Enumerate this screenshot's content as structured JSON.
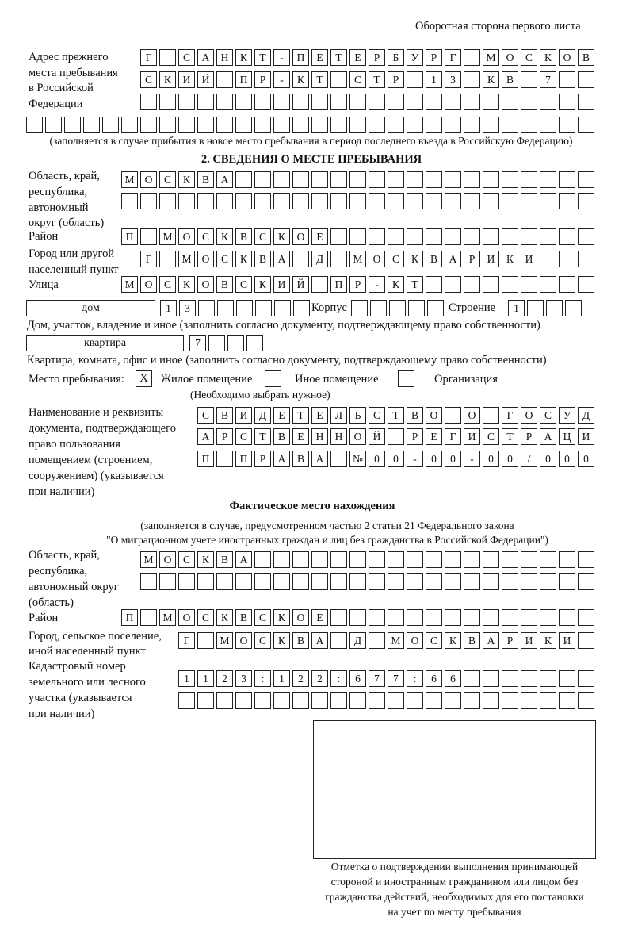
{
  "header": "Оборотная сторона первого листа",
  "prev_address": {
    "label": [
      "Адрес прежнего",
      "места пребывания",
      "в Российской",
      "Федерации"
    ],
    "rows": [
      [
        "Г",
        "",
        "С",
        "А",
        "Н",
        "К",
        "Т",
        "-",
        "П",
        "Е",
        "Т",
        "Е",
        "Р",
        "Б",
        "У",
        "Р",
        "Г",
        "",
        "М",
        "О",
        "С",
        "К",
        "О",
        "В"
      ],
      [
        "С",
        "К",
        "И",
        "Й",
        "",
        "П",
        "Р",
        "-",
        "К",
        "Т",
        "",
        "С",
        "Т",
        "Р",
        "",
        "1",
        "3",
        "",
        "К",
        "В",
        "",
        "7",
        "",
        ""
      ],
      [
        "",
        "",
        "",
        "",
        "",
        "",
        "",
        "",
        "",
        "",
        "",
        "",
        "",
        "",
        "",
        "",
        "",
        "",
        "",
        "",
        "",
        "",
        "",
        ""
      ],
      [
        "",
        "",
        "",
        "",
        "",
        "",
        "",
        "",
        "",
        "",
        "",
        "",
        "",
        "",
        "",
        "",
        "",
        "",
        "",
        "",
        "",
        "",
        "",
        "",
        "",
        "",
        "",
        "",
        "",
        ""
      ]
    ],
    "note": "(заполняется в случае прибытия в новое место пребывания в период последнего въезда в Российскую Федерацию)"
  },
  "section2": {
    "title": "2. СВЕДЕНИЯ О МЕСТЕ ПРЕБЫВАНИЯ",
    "region_label": [
      "Область, край,",
      "республика,",
      "автономный",
      "округ (область)"
    ],
    "region_rows": [
      [
        "М",
        "О",
        "С",
        "К",
        "В",
        "А",
        "",
        "",
        "",
        "",
        "",
        "",
        "",
        "",
        "",
        "",
        "",
        "",
        "",
        "",
        "",
        "",
        "",
        "",
        ""
      ],
      [
        "",
        "",
        "",
        "",
        "",
        "",
        "",
        "",
        "",
        "",
        "",
        "",
        "",
        "",
        "",
        "",
        "",
        "",
        "",
        "",
        "",
        "",
        "",
        "",
        ""
      ]
    ],
    "district_label": "Район",
    "district_row": [
      "П",
      "",
      "М",
      "О",
      "С",
      "К",
      "В",
      "С",
      "К",
      "О",
      "Е",
      "",
      "",
      "",
      "",
      "",
      "",
      "",
      "",
      "",
      "",
      "",
      "",
      "",
      ""
    ],
    "city_label": [
      "Город или другой",
      "населенный пункт"
    ],
    "city_row": [
      "Г",
      "",
      "М",
      "О",
      "С",
      "К",
      "В",
      "А",
      "",
      "Д",
      "",
      "М",
      "О",
      "С",
      "К",
      "В",
      "А",
      "Р",
      "И",
      "К",
      "И",
      "",
      "",
      ""
    ],
    "street_label": "Улица",
    "street_row": [
      "М",
      "О",
      "С",
      "К",
      "О",
      "В",
      "С",
      "К",
      "И",
      "Й",
      "",
      "П",
      "Р",
      "-",
      "К",
      "Т",
      "",
      "",
      "",
      "",
      "",
      "",
      "",
      "",
      ""
    ],
    "house": {
      "type": "дом",
      "cells": [
        "1",
        "3",
        "",
        "",
        "",
        "",
        "",
        ""
      ],
      "korpus_label": "Корпус",
      "korpus_cells": [
        "",
        "",
        "",
        "",
        ""
      ],
      "stroenie_label": "Строение",
      "stroenie_cells": [
        "1",
        "",
        "",
        ""
      ],
      "note": "Дом, участок, владение и иное (заполнить согласно документу, подтверждающему право собственности)"
    },
    "apartment": {
      "type": "квартира",
      "cells": [
        "7",
        "",
        "",
        ""
      ],
      "note": "Квартира, комната, офис и иное (заполнить согласно документу, подтверждающему право собственности)"
    },
    "stay_place": {
      "label": "Место пребывания:",
      "options": [
        {
          "label": "Жилое помещение",
          "mark": "X",
          "checked": true
        },
        {
          "label": "Иное помещение",
          "mark": "",
          "checked": false
        },
        {
          "label": "Организация",
          "mark": "",
          "checked": false
        }
      ],
      "note": "(Необходимо выбрать нужное)"
    },
    "document_label": [
      "Наименование и реквизиты",
      "документа, подтверждающего",
      "право пользования",
      "помещением (строением,",
      "сооружением) (указывается",
      "при наличии)"
    ],
    "document_rows": [
      [
        "С",
        "В",
        "И",
        "Д",
        "Е",
        "Т",
        "Е",
        "Л",
        "Ь",
        "С",
        "Т",
        "В",
        "О",
        "",
        "О",
        "",
        "Г",
        "О",
        "С",
        "У",
        "Д"
      ],
      [
        "А",
        "Р",
        "С",
        "Т",
        "В",
        "Е",
        "Н",
        "Н",
        "О",
        "Й",
        "",
        "Р",
        "Е",
        "Г",
        "И",
        "С",
        "Т",
        "Р",
        "А",
        "Ц",
        "И"
      ],
      [
        "П",
        "",
        "П",
        "Р",
        "А",
        "В",
        "А",
        "",
        "№",
        "0",
        "0",
        "-",
        "0",
        "0",
        "-",
        "0",
        "0",
        "/",
        "0",
        "0",
        "0"
      ]
    ]
  },
  "actual": {
    "title": "Фактическое место нахождения",
    "note": [
      "(заполняется в случае, предусмотренном частью 2 статьи 21 Федерального закона",
      "\"О миграционном учете иностранных граждан и лиц без гражданства в Российской Федерации\")"
    ],
    "region_label": [
      "Область, край,",
      "республика,",
      "автономный округ",
      "(область)"
    ],
    "region_rows": [
      [
        "М",
        "О",
        "С",
        "К",
        "В",
        "А",
        "",
        "",
        "",
        "",
        "",
        "",
        "",
        "",
        "",
        "",
        "",
        "",
        "",
        "",
        "",
        "",
        "",
        ""
      ],
      [
        "",
        "",
        "",
        "",
        "",
        "",
        "",
        "",
        "",
        "",
        "",
        "",
        "",
        "",
        "",
        "",
        "",
        "",
        "",
        "",
        "",
        "",
        "",
        ""
      ]
    ],
    "district_label": "Район",
    "district_row": [
      "П",
      "",
      "М",
      "О",
      "С",
      "К",
      "В",
      "С",
      "К",
      "О",
      "Е",
      "",
      "",
      "",
      "",
      "",
      "",
      "",
      "",
      "",
      "",
      "",
      "",
      "",
      ""
    ],
    "city_label": [
      "Город, сельское поселение,",
      "иной населенный пункт"
    ],
    "city_row": [
      "Г",
      "",
      "М",
      "О",
      "С",
      "К",
      "В",
      "А",
      "",
      "Д",
      "",
      "М",
      "О",
      "С",
      "К",
      "В",
      "А",
      "Р",
      "И",
      "К",
      "И",
      ""
    ],
    "cadastre_label": [
      "Кадастровый номер",
      "земельного или лесного",
      "участка (указывается",
      "при наличии)"
    ],
    "cadastre_rows": [
      [
        "1",
        "1",
        "2",
        "3",
        ":",
        "1",
        "2",
        "2",
        ":",
        "6",
        "7",
        "7",
        ":",
        "6",
        "6",
        "",
        "",
        "",
        "",
        "",
        "",
        ""
      ],
      [
        "",
        "",
        "",
        "",
        "",
        "",
        "",
        "",
        "",
        "",
        "",
        "",
        "",
        "",
        "",
        "",
        "",
        "",
        "",
        "",
        "",
        ""
      ]
    ]
  },
  "stamp_caption": [
    "Отметка о подтверждении выполнения принимающей",
    "стороной и иностранным гражданином или лицом без",
    "гражданства действий, необходимых для его постановки",
    "на учет по месту пребывания"
  ]
}
